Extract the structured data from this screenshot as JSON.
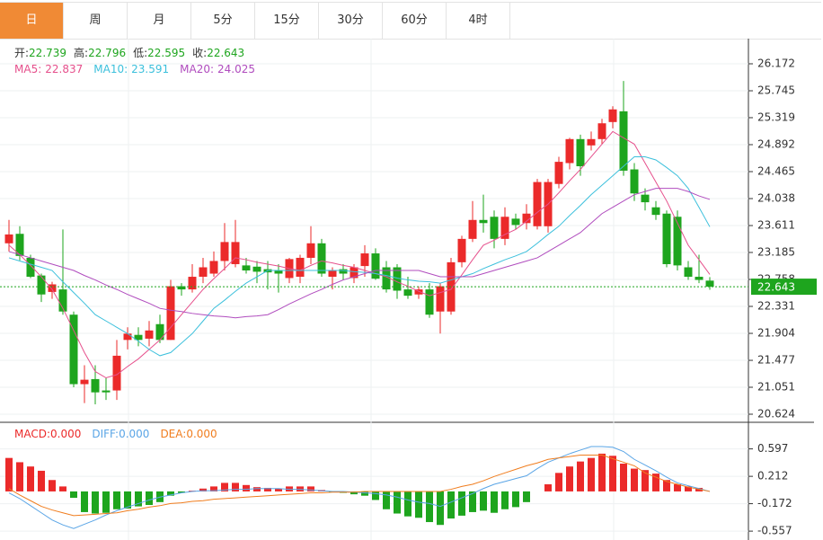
{
  "tabs": [
    "日",
    "周",
    "月",
    "5分",
    "15分",
    "30分",
    "60分",
    "4时"
  ],
  "active_tab": 0,
  "chart_data": [
    {
      "type": "candlestick",
      "info_names": [
        "开:",
        "高:",
        "低:",
        "收:"
      ],
      "up_color": "#eb2a2a",
      "down_color": "#1ea51e",
      "open": [
        23.33,
        23.48,
        23.1,
        22.82,
        22.56,
        22.6,
        22.2,
        21.1,
        21.18,
        21.0,
        21.0,
        21.8,
        21.88,
        21.82,
        22.05,
        21.8,
        22.65,
        22.6,
        22.8,
        22.85,
        23.05,
        23.0,
        22.98,
        22.96,
        22.92,
        22.9,
        22.78,
        22.8,
        23.1,
        23.33,
        22.8,
        22.92,
        22.78,
        22.97,
        23.17,
        22.95,
        22.95,
        22.6,
        22.52,
        22.6,
        22.25,
        22.25,
        23.03,
        23.4,
        23.7,
        23.75,
        23.4,
        23.72,
        23.65,
        23.6,
        23.6,
        24.27,
        24.6,
        24.98,
        24.88,
        24.98,
        25.25,
        25.42,
        24.5,
        24.1,
        23.9,
        23.8,
        23.75,
        22.95,
        22.8,
        22.739
      ],
      "high": [
        23.7,
        23.6,
        23.15,
        22.85,
        22.72,
        23.55,
        22.25,
        21.4,
        21.4,
        21.2,
        21.8,
        22.0,
        22.0,
        22.1,
        22.2,
        22.75,
        22.7,
        23.0,
        23.1,
        23.2,
        23.65,
        23.7,
        23.1,
        23.05,
        23.05,
        23.0,
        23.1,
        23.15,
        23.6,
        23.4,
        22.95,
        23.0,
        23.0,
        23.3,
        23.25,
        23.05,
        23.0,
        22.8,
        22.65,
        22.7,
        22.7,
        23.1,
        23.45,
        24.0,
        24.1,
        23.85,
        23.9,
        23.8,
        23.95,
        24.35,
        24.35,
        24.7,
        25.0,
        25.05,
        25.1,
        25.3,
        25.5,
        25.9,
        24.6,
        24.2,
        24.0,
        23.85,
        23.85,
        23.05,
        23.15,
        22.796
      ],
      "low": [
        23.2,
        23.06,
        22.78,
        22.4,
        22.45,
        22.2,
        21.05,
        20.8,
        20.78,
        20.85,
        20.85,
        21.65,
        21.7,
        21.7,
        21.75,
        21.8,
        22.5,
        22.55,
        22.7,
        22.8,
        22.9,
        22.95,
        22.85,
        22.7,
        22.6,
        22.55,
        22.7,
        22.7,
        23.0,
        22.8,
        22.6,
        22.75,
        22.7,
        22.8,
        22.75,
        22.55,
        22.45,
        22.45,
        22.45,
        22.15,
        21.9,
        22.2,
        22.95,
        23.35,
        23.5,
        23.25,
        23.3,
        23.55,
        23.55,
        23.55,
        23.5,
        24.2,
        24.5,
        24.4,
        24.8,
        24.9,
        25.15,
        24.4,
        24.0,
        23.85,
        23.7,
        22.95,
        22.9,
        22.75,
        22.7,
        22.595
      ],
      "close": [
        23.47,
        23.13,
        22.8,
        22.52,
        22.68,
        22.25,
        21.1,
        21.17,
        20.97,
        20.97,
        21.55,
        21.9,
        21.8,
        21.95,
        21.8,
        22.65,
        22.6,
        22.8,
        22.95,
        23.05,
        23.35,
        23.35,
        22.9,
        22.88,
        22.87,
        22.85,
        23.08,
        23.1,
        23.33,
        22.85,
        22.9,
        22.85,
        22.95,
        23.17,
        22.77,
        22.6,
        22.58,
        22.5,
        22.6,
        22.2,
        22.65,
        23.03,
        23.4,
        23.7,
        23.65,
        23.4,
        23.75,
        23.62,
        23.8,
        24.3,
        24.3,
        24.62,
        24.98,
        24.55,
        24.98,
        25.23,
        25.45,
        24.48,
        24.12,
        23.98,
        23.78,
        23.0,
        22.98,
        22.8,
        22.75,
        22.643
      ],
      "series": [
        {
          "name": "MA5:",
          "color": "#e6508c",
          "values": [
            23.3,
            23.15,
            22.98,
            22.8,
            22.6,
            22.3,
            21.95,
            21.6,
            21.3,
            21.2,
            21.25,
            21.38,
            21.5,
            21.65,
            21.8,
            22.0,
            22.2,
            22.4,
            22.6,
            22.77,
            22.93,
            23.1,
            23.07,
            23.03,
            23.0,
            22.97,
            22.93,
            22.9,
            22.98,
            23.05,
            23.02,
            22.98,
            22.95,
            22.9,
            22.85,
            22.8,
            22.72,
            22.65,
            22.57,
            22.5,
            22.55,
            22.6,
            22.83,
            23.07,
            23.3,
            23.38,
            23.47,
            23.55,
            23.68,
            23.82,
            23.95,
            24.13,
            24.32,
            24.5,
            24.7,
            24.9,
            25.1,
            25.0,
            24.9,
            24.6,
            24.3,
            24.0,
            23.65,
            23.3,
            23.07,
            22.837
          ]
        },
        {
          "name": "MA10:",
          "color": "#3cc0dc",
          "values": [
            23.1,
            23.05,
            23.0,
            22.95,
            22.9,
            22.72,
            22.55,
            22.38,
            22.2,
            22.1,
            22.0,
            21.9,
            21.78,
            21.65,
            21.55,
            21.6,
            21.75,
            21.9,
            22.1,
            22.3,
            22.43,
            22.57,
            22.7,
            22.8,
            22.9,
            22.9,
            22.9,
            22.9,
            22.9,
            22.9,
            22.9,
            22.9,
            22.88,
            22.87,
            22.85,
            22.82,
            22.78,
            22.75,
            22.73,
            22.72,
            22.7,
            22.75,
            22.8,
            22.85,
            22.93,
            23.0,
            23.07,
            23.13,
            23.2,
            23.33,
            23.47,
            23.6,
            23.77,
            23.93,
            24.1,
            24.25,
            24.4,
            24.55,
            24.7,
            24.7,
            24.65,
            24.53,
            24.4,
            24.2,
            23.9,
            23.591
          ]
        },
        {
          "name": "MA20:",
          "color": "#b04cbe",
          "values": [
            23.2,
            23.15,
            23.1,
            23.05,
            23.0,
            22.95,
            22.9,
            22.82,
            22.75,
            22.67,
            22.6,
            22.52,
            22.45,
            22.38,
            22.3,
            22.27,
            22.25,
            22.22,
            22.2,
            22.18,
            22.17,
            22.15,
            22.17,
            22.18,
            22.2,
            22.28,
            22.37,
            22.45,
            22.53,
            22.6,
            22.68,
            22.75,
            22.8,
            22.85,
            22.9,
            22.9,
            22.9,
            22.9,
            22.9,
            22.85,
            22.8,
            22.8,
            22.8,
            22.8,
            22.85,
            22.9,
            22.95,
            23.0,
            23.05,
            23.1,
            23.2,
            23.3,
            23.4,
            23.5,
            23.65,
            23.8,
            23.9,
            24.0,
            24.1,
            24.15,
            24.2,
            24.2,
            24.2,
            24.15,
            24.08,
            24.025
          ]
        }
      ],
      "ylim": [
        20.496,
        26.542
      ],
      "yticks": [
        26.172,
        25.745,
        25.319,
        24.892,
        24.465,
        24.038,
        23.611,
        23.185,
        22.758,
        22.331,
        21.904,
        21.477,
        21.051,
        20.624
      ],
      "grid": true
    },
    {
      "type": "macd",
      "ylim": [
        -0.669,
        0.945
      ],
      "yticks": [
        0.597,
        0.212,
        -0.172,
        -0.557
      ],
      "grid": true,
      "series": [
        {
          "name": "MACD:",
          "kind": "bar",
          "color": "#eb2a2a",
          "neg_color": "#1ea51e",
          "last_label": "0.000",
          "values": [
            0.47,
            0.41,
            0.35,
            0.29,
            0.16,
            0.07,
            -0.09,
            -0.29,
            -0.31,
            -0.3,
            -0.25,
            -0.24,
            -0.21,
            -0.19,
            -0.15,
            -0.06,
            -0.02,
            0.01,
            0.04,
            0.07,
            0.12,
            0.12,
            0.09,
            0.06,
            0.05,
            0.04,
            0.07,
            0.07,
            0.07,
            0.02,
            -0.01,
            -0.02,
            -0.04,
            -0.06,
            -0.12,
            -0.25,
            -0.31,
            -0.35,
            -0.37,
            -0.43,
            -0.47,
            -0.38,
            -0.34,
            -0.29,
            -0.27,
            -0.3,
            -0.25,
            -0.22,
            -0.15,
            0.0,
            0.1,
            0.26,
            0.35,
            0.42,
            0.47,
            0.53,
            0.5,
            0.39,
            0.32,
            0.3,
            0.25,
            0.16,
            0.1,
            0.07,
            0.05,
            0.0
          ]
        },
        {
          "name": "DIFF:",
          "kind": "line",
          "color": "#5aa5e6",
          "last_label": "0.000",
          "values": [
            -0.02,
            -0.1,
            -0.2,
            -0.3,
            -0.4,
            -0.47,
            -0.52,
            -0.46,
            -0.4,
            -0.33,
            -0.27,
            -0.22,
            -0.17,
            -0.12,
            -0.08,
            -0.05,
            -0.02,
            0.0,
            0.01,
            0.01,
            0.02,
            0.03,
            0.03,
            0.04,
            0.04,
            0.04,
            0.03,
            0.03,
            0.02,
            0.01,
            0.0,
            0.0,
            -0.01,
            -0.02,
            -0.03,
            -0.05,
            -0.08,
            -0.12,
            -0.15,
            -0.17,
            -0.21,
            -0.15,
            -0.09,
            -0.03,
            0.04,
            0.1,
            0.14,
            0.18,
            0.22,
            0.32,
            0.41,
            0.47,
            0.53,
            0.58,
            0.63,
            0.63,
            0.62,
            0.56,
            0.45,
            0.37,
            0.29,
            0.2,
            0.12,
            0.08,
            0.04,
            0.0
          ]
        },
        {
          "name": "DEA:",
          "kind": "line",
          "color": "#f07d1e",
          "last_label": "0.000",
          "values": [
            0.04,
            -0.05,
            -0.13,
            -0.21,
            -0.26,
            -0.3,
            -0.34,
            -0.33,
            -0.32,
            -0.31,
            -0.3,
            -0.27,
            -0.25,
            -0.22,
            -0.2,
            -0.17,
            -0.16,
            -0.14,
            -0.13,
            -0.11,
            -0.1,
            -0.09,
            -0.08,
            -0.07,
            -0.06,
            -0.05,
            -0.04,
            -0.03,
            -0.02,
            -0.02,
            -0.01,
            -0.01,
            -0.01,
            0.0,
            0.0,
            0.0,
            0.0,
            0.0,
            0.0,
            0.0,
            0.0,
            0.03,
            0.07,
            0.1,
            0.15,
            0.21,
            0.26,
            0.31,
            0.36,
            0.4,
            0.45,
            0.47,
            0.49,
            0.51,
            0.51,
            0.51,
            0.46,
            0.41,
            0.36,
            0.26,
            0.2,
            0.14,
            0.1,
            0.06,
            0.03,
            0.0
          ]
        }
      ]
    }
  ]
}
